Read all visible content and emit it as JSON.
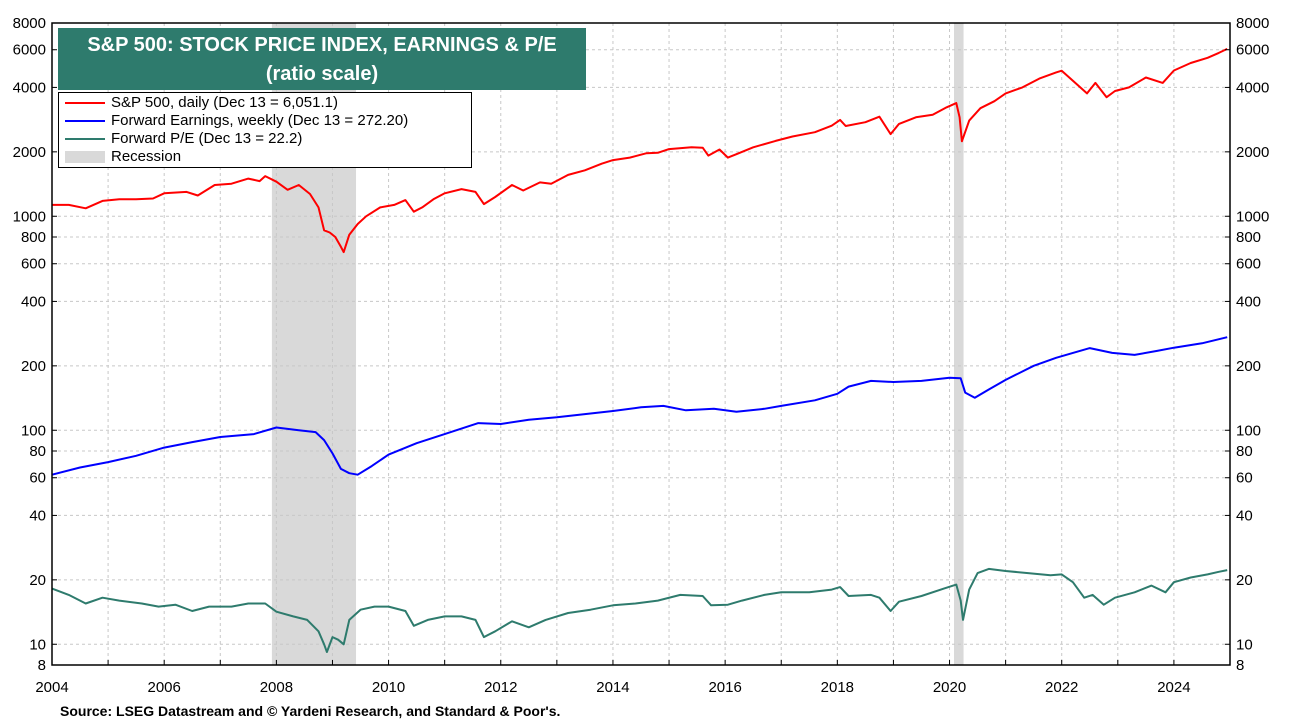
{
  "chart_data": {
    "type": "line",
    "title": "S&P 500: STOCK PRICE INDEX, EARNINGS & P/E",
    "subtitle": "(ratio scale)",
    "yscale": "log",
    "xlim": [
      2004,
      2025
    ],
    "ylim": [
      8,
      8000
    ],
    "x_ticks": [
      2004,
      2006,
      2008,
      2010,
      2012,
      2014,
      2016,
      2018,
      2020,
      2022,
      2024
    ],
    "x_tick_labels": [
      "2004",
      "2006",
      "2008",
      "2010",
      "2012",
      "2014",
      "2016",
      "2018",
      "2020",
      "2022",
      "2024"
    ],
    "y_ticks": [
      8,
      10,
      20,
      40,
      60,
      80,
      100,
      200,
      400,
      600,
      800,
      1000,
      2000,
      4000,
      6000,
      8000
    ],
    "y_tick_labels": [
      "8",
      "10",
      "20",
      "40",
      "60",
      "80",
      "100",
      "200",
      "400",
      "600",
      "800",
      "1000",
      "2000",
      "4000",
      "6000",
      "8000"
    ],
    "grid": true,
    "legend_position": "top-left",
    "recessions": [
      {
        "start": 2007.92,
        "end": 2009.42
      },
      {
        "start": 2020.08,
        "end": 2020.25
      }
    ],
    "series": [
      {
        "name": "S&P 500, daily (Dec 13 = 6,051.1)",
        "color": "#ff0000",
        "points": [
          [
            2004.0,
            1130
          ],
          [
            2004.3,
            1130
          ],
          [
            2004.6,
            1090
          ],
          [
            2004.9,
            1180
          ],
          [
            2005.2,
            1200
          ],
          [
            2005.5,
            1200
          ],
          [
            2005.8,
            1210
          ],
          [
            2006.0,
            1280
          ],
          [
            2006.4,
            1300
          ],
          [
            2006.6,
            1250
          ],
          [
            2006.9,
            1400
          ],
          [
            2007.2,
            1420
          ],
          [
            2007.5,
            1500
          ],
          [
            2007.7,
            1460
          ],
          [
            2007.8,
            1540
          ],
          [
            2008.0,
            1450
          ],
          [
            2008.2,
            1330
          ],
          [
            2008.4,
            1400
          ],
          [
            2008.6,
            1270
          ],
          [
            2008.75,
            1100
          ],
          [
            2008.85,
            860
          ],
          [
            2008.95,
            840
          ],
          [
            2009.05,
            800
          ],
          [
            2009.15,
            720
          ],
          [
            2009.2,
            680
          ],
          [
            2009.3,
            820
          ],
          [
            2009.45,
            920
          ],
          [
            2009.6,
            1000
          ],
          [
            2009.85,
            1100
          ],
          [
            2010.1,
            1130
          ],
          [
            2010.3,
            1190
          ],
          [
            2010.45,
            1050
          ],
          [
            2010.6,
            1100
          ],
          [
            2010.8,
            1200
          ],
          [
            2011.0,
            1280
          ],
          [
            2011.3,
            1340
          ],
          [
            2011.55,
            1300
          ],
          [
            2011.7,
            1140
          ],
          [
            2011.9,
            1230
          ],
          [
            2012.2,
            1400
          ],
          [
            2012.4,
            1320
          ],
          [
            2012.7,
            1440
          ],
          [
            2012.9,
            1420
          ],
          [
            2013.2,
            1560
          ],
          [
            2013.5,
            1640
          ],
          [
            2013.8,
            1760
          ],
          [
            2014.0,
            1830
          ],
          [
            2014.3,
            1880
          ],
          [
            2014.6,
            1970
          ],
          [
            2014.8,
            1980
          ],
          [
            2015.0,
            2060
          ],
          [
            2015.4,
            2100
          ],
          [
            2015.6,
            2090
          ],
          [
            2015.7,
            1920
          ],
          [
            2015.9,
            2050
          ],
          [
            2016.05,
            1880
          ],
          [
            2016.2,
            1950
          ],
          [
            2016.5,
            2100
          ],
          [
            2016.9,
            2250
          ],
          [
            2017.2,
            2360
          ],
          [
            2017.6,
            2470
          ],
          [
            2017.9,
            2650
          ],
          [
            2018.05,
            2820
          ],
          [
            2018.15,
            2640
          ],
          [
            2018.5,
            2750
          ],
          [
            2018.75,
            2920
          ],
          [
            2018.95,
            2420
          ],
          [
            2019.1,
            2700
          ],
          [
            2019.4,
            2900
          ],
          [
            2019.7,
            2980
          ],
          [
            2019.95,
            3230
          ],
          [
            2020.12,
            3380
          ],
          [
            2020.18,
            2900
          ],
          [
            2020.22,
            2240
          ],
          [
            2020.35,
            2800
          ],
          [
            2020.55,
            3200
          ],
          [
            2020.8,
            3450
          ],
          [
            2021.0,
            3750
          ],
          [
            2021.3,
            4000
          ],
          [
            2021.6,
            4400
          ],
          [
            2021.9,
            4700
          ],
          [
            2022.0,
            4790
          ],
          [
            2022.2,
            4300
          ],
          [
            2022.45,
            3750
          ],
          [
            2022.6,
            4200
          ],
          [
            2022.8,
            3600
          ],
          [
            2022.95,
            3850
          ],
          [
            2023.2,
            4000
          ],
          [
            2023.5,
            4450
          ],
          [
            2023.8,
            4200
          ],
          [
            2024.0,
            4800
          ],
          [
            2024.3,
            5200
          ],
          [
            2024.6,
            5500
          ],
          [
            2024.8,
            5800
          ],
          [
            2024.95,
            6051.1
          ]
        ]
      },
      {
        "name": "Forward Earnings, weekly (Dec 13 = 272.20)",
        "color": "#0000ff",
        "points": [
          [
            2004.0,
            62
          ],
          [
            2004.5,
            67
          ],
          [
            2005.0,
            71
          ],
          [
            2005.5,
            76
          ],
          [
            2006.0,
            83
          ],
          [
            2006.5,
            88
          ],
          [
            2007.0,
            93
          ],
          [
            2007.6,
            96
          ],
          [
            2008.0,
            103
          ],
          [
            2008.4,
            100
          ],
          [
            2008.7,
            98
          ],
          [
            2008.85,
            90
          ],
          [
            2009.0,
            78
          ],
          [
            2009.15,
            66
          ],
          [
            2009.3,
            63
          ],
          [
            2009.45,
            62
          ],
          [
            2009.7,
            68
          ],
          [
            2010.0,
            77
          ],
          [
            2010.5,
            87
          ],
          [
            2011.0,
            96
          ],
          [
            2011.6,
            108
          ],
          [
            2012.0,
            107
          ],
          [
            2012.5,
            112
          ],
          [
            2013.0,
            115
          ],
          [
            2013.5,
            119
          ],
          [
            2014.0,
            123
          ],
          [
            2014.5,
            128
          ],
          [
            2014.9,
            130
          ],
          [
            2015.3,
            124
          ],
          [
            2015.8,
            126
          ],
          [
            2016.2,
            122
          ],
          [
            2016.7,
            126
          ],
          [
            2017.0,
            130
          ],
          [
            2017.6,
            138
          ],
          [
            2018.0,
            148
          ],
          [
            2018.2,
            160
          ],
          [
            2018.6,
            170
          ],
          [
            2019.0,
            168
          ],
          [
            2019.5,
            170
          ],
          [
            2020.0,
            176
          ],
          [
            2020.2,
            175
          ],
          [
            2020.28,
            150
          ],
          [
            2020.45,
            142
          ],
          [
            2020.7,
            155
          ],
          [
            2021.0,
            172
          ],
          [
            2021.5,
            200
          ],
          [
            2021.9,
            218
          ],
          [
            2022.2,
            230
          ],
          [
            2022.5,
            242
          ],
          [
            2022.9,
            230
          ],
          [
            2023.3,
            225
          ],
          [
            2023.7,
            235
          ],
          [
            2024.0,
            243
          ],
          [
            2024.5,
            255
          ],
          [
            2024.95,
            272.2
          ]
        ]
      },
      {
        "name": "Forward P/E (Dec 13 = 22.2)",
        "color": "#2e7b6d",
        "points": [
          [
            2004.0,
            18.2
          ],
          [
            2004.3,
            17.0
          ],
          [
            2004.6,
            15.5
          ],
          [
            2004.9,
            16.5
          ],
          [
            2005.2,
            16.0
          ],
          [
            2005.6,
            15.5
          ],
          [
            2005.9,
            15.0
          ],
          [
            2006.2,
            15.3
          ],
          [
            2006.5,
            14.3
          ],
          [
            2006.8,
            15.0
          ],
          [
            2007.2,
            15.0
          ],
          [
            2007.5,
            15.5
          ],
          [
            2007.8,
            15.5
          ],
          [
            2008.0,
            14.2
          ],
          [
            2008.3,
            13.5
          ],
          [
            2008.55,
            13.0
          ],
          [
            2008.75,
            11.5
          ],
          [
            2008.85,
            10.0
          ],
          [
            2008.9,
            9.2
          ],
          [
            2009.0,
            10.8
          ],
          [
            2009.1,
            10.5
          ],
          [
            2009.2,
            10.0
          ],
          [
            2009.3,
            13.0
          ],
          [
            2009.5,
            14.5
          ],
          [
            2009.75,
            15.0
          ],
          [
            2010.0,
            15.0
          ],
          [
            2010.3,
            14.3
          ],
          [
            2010.45,
            12.2
          ],
          [
            2010.7,
            13.0
          ],
          [
            2011.0,
            13.5
          ],
          [
            2011.3,
            13.5
          ],
          [
            2011.55,
            13.0
          ],
          [
            2011.7,
            10.8
          ],
          [
            2011.9,
            11.5
          ],
          [
            2012.2,
            12.8
          ],
          [
            2012.5,
            12.0
          ],
          [
            2012.8,
            13.0
          ],
          [
            2013.2,
            14.0
          ],
          [
            2013.6,
            14.5
          ],
          [
            2014.0,
            15.2
          ],
          [
            2014.4,
            15.5
          ],
          [
            2014.8,
            16.0
          ],
          [
            2015.2,
            17.0
          ],
          [
            2015.6,
            16.8
          ],
          [
            2015.75,
            15.2
          ],
          [
            2016.05,
            15.3
          ],
          [
            2016.3,
            16.0
          ],
          [
            2016.7,
            17.0
          ],
          [
            2017.0,
            17.5
          ],
          [
            2017.5,
            17.5
          ],
          [
            2017.9,
            18.0
          ],
          [
            2018.05,
            18.5
          ],
          [
            2018.2,
            16.8
          ],
          [
            2018.6,
            17.0
          ],
          [
            2018.75,
            16.5
          ],
          [
            2018.95,
            14.3
          ],
          [
            2019.1,
            15.8
          ],
          [
            2019.5,
            16.8
          ],
          [
            2019.9,
            18.2
          ],
          [
            2020.12,
            19.0
          ],
          [
            2020.2,
            16.0
          ],
          [
            2020.24,
            13.0
          ],
          [
            2020.35,
            18.0
          ],
          [
            2020.5,
            21.5
          ],
          [
            2020.7,
            22.5
          ],
          [
            2021.0,
            22.0
          ],
          [
            2021.4,
            21.5
          ],
          [
            2021.8,
            21.0
          ],
          [
            2022.0,
            21.2
          ],
          [
            2022.2,
            19.5
          ],
          [
            2022.4,
            16.5
          ],
          [
            2022.55,
            17.0
          ],
          [
            2022.75,
            15.3
          ],
          [
            2022.95,
            16.5
          ],
          [
            2023.3,
            17.5
          ],
          [
            2023.6,
            18.8
          ],
          [
            2023.85,
            17.5
          ],
          [
            2024.0,
            19.5
          ],
          [
            2024.3,
            20.5
          ],
          [
            2024.6,
            21.2
          ],
          [
            2024.8,
            21.8
          ],
          [
            2024.95,
            22.2
          ]
        ]
      }
    ]
  },
  "legend": {
    "items": [
      {
        "label": "S&P 500, daily (Dec 13 = 6,051.1)",
        "color": "#ff0000",
        "kind": "line"
      },
      {
        "label": "Forward Earnings, weekly (Dec 13 = 272.20)",
        "color": "#0000ff",
        "kind": "line"
      },
      {
        "label": "Forward P/E (Dec 13 = 22.2)",
        "color": "#2e7b6d",
        "kind": "line"
      },
      {
        "label": "Recession",
        "color": "#d9d9d9",
        "kind": "rect"
      }
    ]
  },
  "source": "Source: LSEG Datastream and © Yardeni Research, and Standard & Poor's."
}
